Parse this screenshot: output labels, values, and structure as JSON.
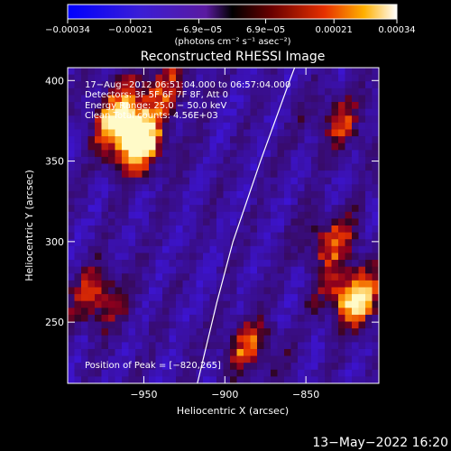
{
  "colorbar": {
    "tick_labels": [
      "−0.00034",
      "−0.00021",
      "−6.9e−05",
      "6.9e−05",
      "0.00021",
      "0.00034"
    ],
    "unit_label": "(photons cm⁻² s⁻¹ asec⁻²)",
    "range": [
      -0.00034,
      0.00034
    ]
  },
  "chart_data": {
    "type": "heatmap",
    "title": "Reconstructed RHESSI Image",
    "xlabel": "Heliocentric X (arcsec)",
    "ylabel": "Heliocentric Y (arcsec)",
    "xlim": [
      -997,
      -805
    ],
    "ylim": [
      212,
      408
    ],
    "x_ticks": [
      -950,
      -900,
      -850
    ],
    "y_ticks": [
      250,
      300,
      350,
      400
    ],
    "x_tick_labels": [
      "−950",
      "−900",
      "−850"
    ],
    "y_tick_labels": [
      "250",
      "300",
      "350",
      "400"
    ],
    "annotations": [
      "17−Aug−2012 06:51:04.000 to 06:57:04.000",
      "Detectors: 3F 5F 6F 7F 8F, Att 0",
      "Energy Range: 25.0 − 50.0 keV",
      "Clean     Total counts: 4.56E+03"
    ],
    "peak_label": "Position of Peak = [−820,265]",
    "peak": [
      -820,
      265
    ],
    "limb_curve": [
      [
        -917,
        212
      ],
      [
        -905,
        262
      ],
      [
        -895,
        300
      ],
      [
        -878,
        350
      ],
      [
        -860,
        400
      ],
      [
        -857,
        408
      ]
    ],
    "bright_sources": [
      {
        "x": -955,
        "y": 360,
        "level": 1.0
      },
      {
        "x": -962,
        "y": 378,
        "level": 0.8
      },
      {
        "x": -978,
        "y": 265,
        "level": 0.7
      },
      {
        "x": -820,
        "y": 265,
        "level": 1.0
      },
      {
        "x": -835,
        "y": 300,
        "level": 0.6
      },
      {
        "x": -885,
        "y": 235,
        "level": 0.6
      },
      {
        "x": -938,
        "y": 398,
        "level": 0.5
      },
      {
        "x": -830,
        "y": 375,
        "level": 0.5
      }
    ]
  },
  "footer": {
    "datetime": "13−May−2022 16:20"
  }
}
